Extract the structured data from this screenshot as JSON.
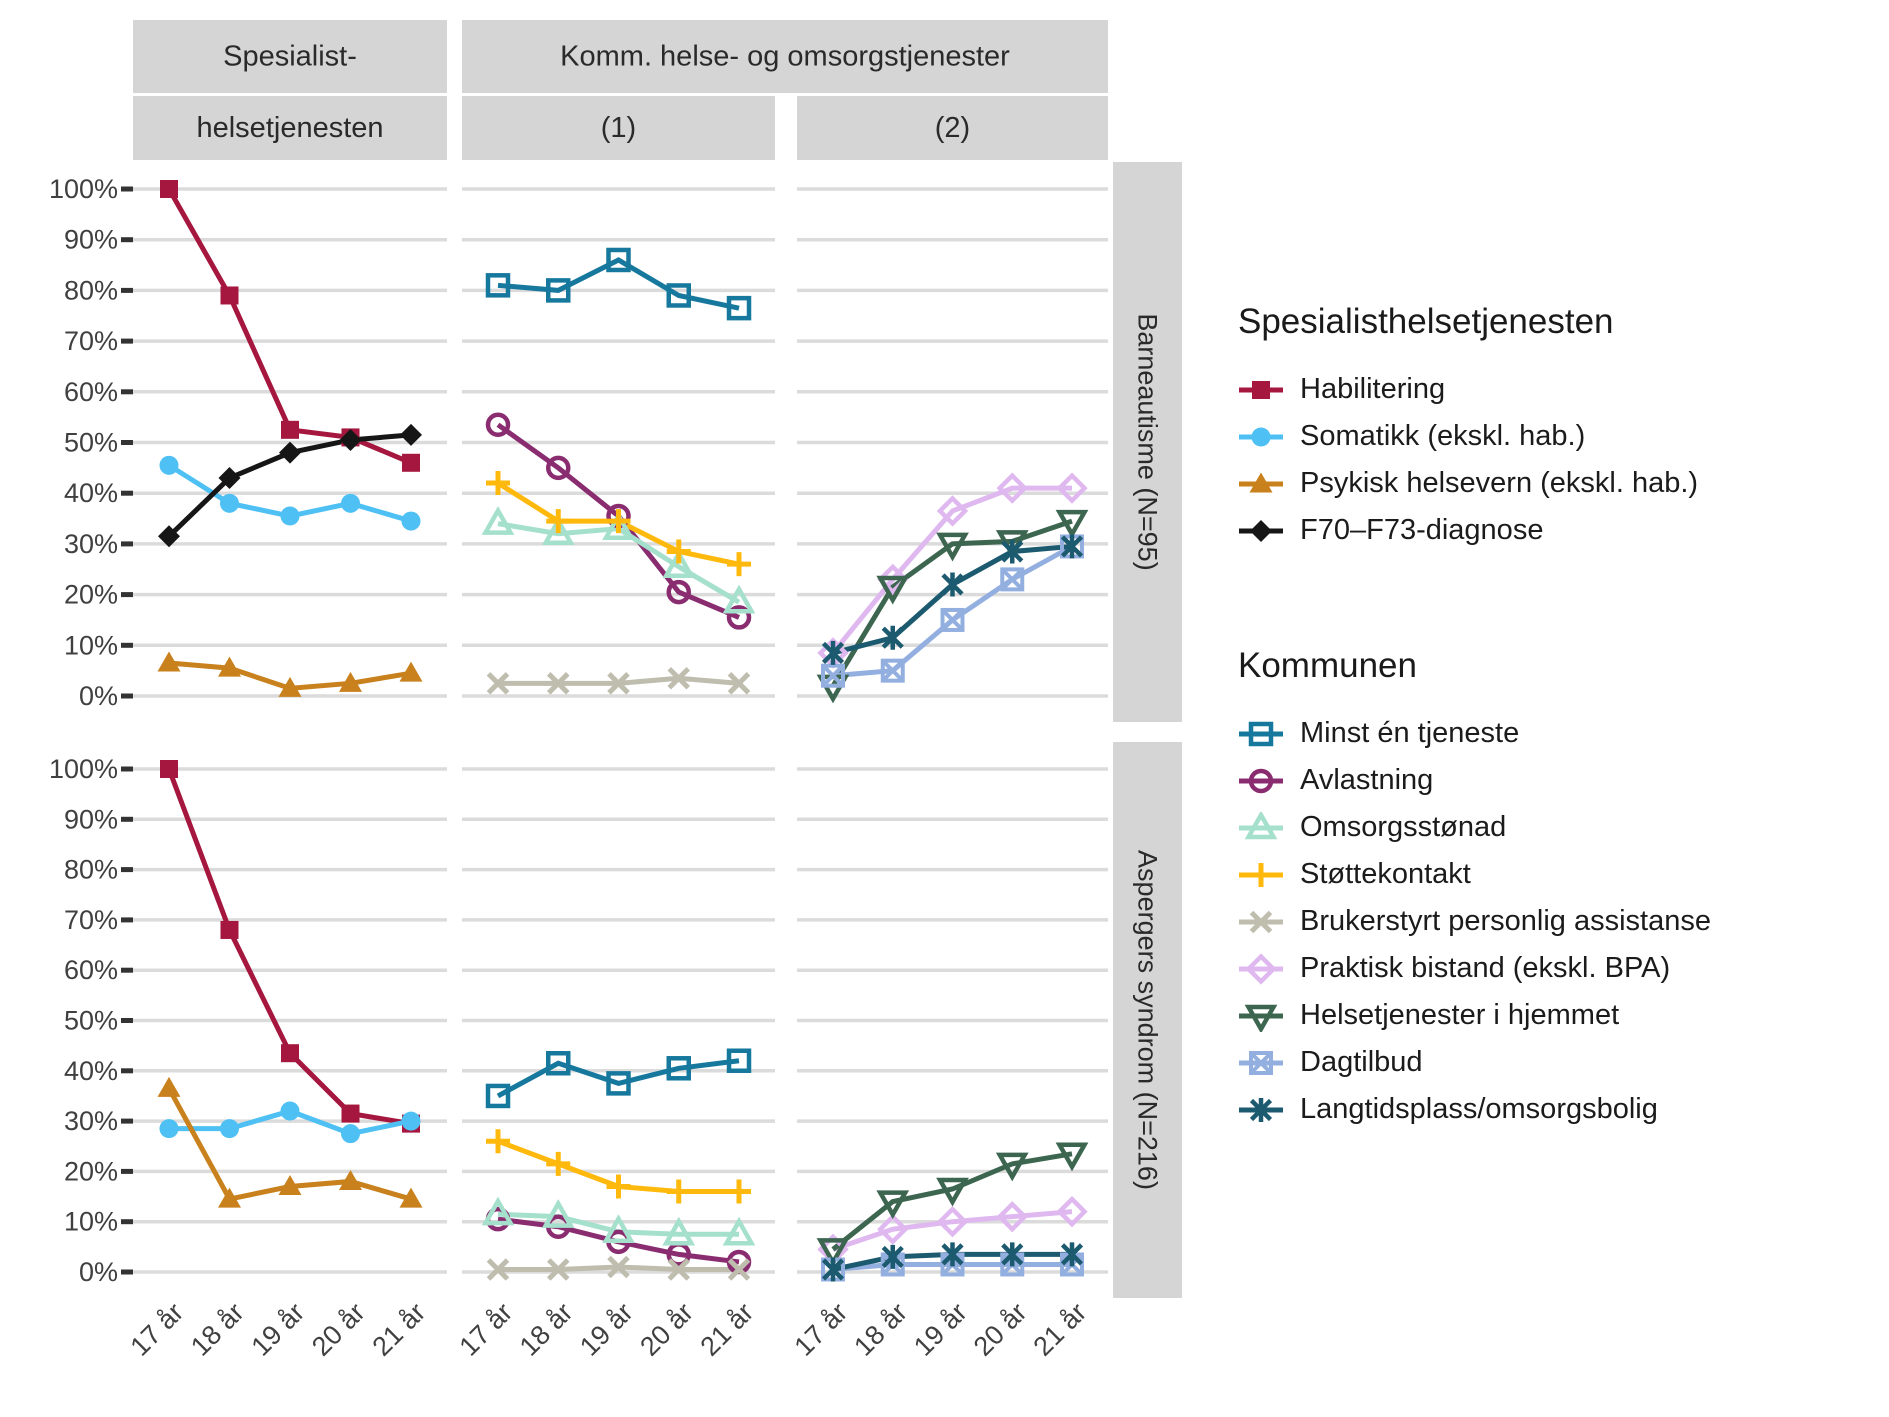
{
  "figure": {
    "facet_column_headers": {
      "spesialist_line1": "Spesialist-",
      "spesialist_line2": "helsetjenesten",
      "komm_group": "Komm. helse- og omsorgstjenester",
      "komm1": "(1)",
      "komm2": "(2)"
    },
    "facet_row_labels": {
      "barneautisme": "Barneautisme (N=95)",
      "aspergers": "Aspergers syndrom (N=216)"
    }
  },
  "axes": {
    "y_tick_labels": [
      "0%",
      "10%",
      "20%",
      "30%",
      "40%",
      "50%",
      "60%",
      "70%",
      "80%",
      "90%",
      "100%"
    ],
    "x_tick_labels": [
      "17 år",
      "18 år",
      "19 år",
      "20 år",
      "21 år"
    ]
  },
  "legend": {
    "groups": [
      {
        "title": "Spesialisthelsetjenesten",
        "series": [
          "habilitering",
          "somatikk",
          "psykisk",
          "f70"
        ]
      },
      {
        "title": "Kommunen",
        "series": [
          "minst",
          "avlastning",
          "omsorg",
          "stotte",
          "bpa",
          "praktisk",
          "hjemme",
          "dagtilbud",
          "langtid"
        ]
      }
    ]
  },
  "chart_data": {
    "type": "line",
    "x_categories": [
      "17 år",
      "18 år",
      "19 år",
      "20 år",
      "21 år"
    ],
    "ylim": [
      0,
      100
    ],
    "ytick_step": 10,
    "grid": true,
    "legend_position": "right",
    "facet_columns": [
      {
        "id": "spesialist",
        "label": "Spesialist- helsetjenesten"
      },
      {
        "id": "komm1",
        "label": "Komm. helse- og omsorgstjenester (1)"
      },
      {
        "id": "komm2",
        "label": "Komm. helse- og omsorgstjenester (2)"
      }
    ],
    "facet_rows": [
      {
        "id": "barneautisme",
        "label": "Barneautisme (N=95)"
      },
      {
        "id": "aspergers",
        "label": "Aspergers syndrom (N=216)"
      }
    ],
    "series": [
      {
        "id": "habilitering",
        "label": "Habilitering",
        "color": "#A5173E",
        "marker": "square",
        "facet_col": "spesialist",
        "values": {
          "barneautisme": [
            100,
            79,
            52.5,
            51,
            46
          ],
          "aspergers": [
            100,
            68,
            43.5,
            31.5,
            29.5
          ]
        }
      },
      {
        "id": "somatikk",
        "label": "Somatikk (ekskl. hab.)",
        "color": "#4EC0F4",
        "marker": "circle",
        "facet_col": "spesialist",
        "values": {
          "barneautisme": [
            45.5,
            38,
            35.5,
            38,
            34.5
          ],
          "aspergers": [
            28.5,
            28.5,
            32,
            27.5,
            30
          ]
        }
      },
      {
        "id": "psykisk",
        "label": "Psykisk helsevern (ekskl. hab.)",
        "color": "#C8811C",
        "marker": "triangle-up",
        "facet_col": "spesialist",
        "values": {
          "barneautisme": [
            6.5,
            5.5,
            1.5,
            2.5,
            4.5
          ],
          "aspergers": [
            36.5,
            14.5,
            17,
            18,
            14.5
          ]
        }
      },
      {
        "id": "f70",
        "label": "F70–F73-diagnose",
        "color": "#161616",
        "marker": "diamond",
        "facet_col": "spesialist",
        "values": {
          "barneautisme": [
            31.5,
            43,
            48,
            50.5,
            51.5
          ],
          "aspergers": null
        }
      },
      {
        "id": "minst",
        "label": "Minst én tjeneste",
        "color": "#17789E",
        "marker": "square-open",
        "facet_col": "komm1",
        "values": {
          "barneautisme": [
            81,
            80,
            86,
            79,
            76.5
          ],
          "aspergers": [
            35,
            41.5,
            37.5,
            40.5,
            42
          ]
        }
      },
      {
        "id": "avlastning",
        "label": "Avlastning",
        "color": "#8A2C70",
        "marker": "circle-open",
        "facet_col": "komm1",
        "values": {
          "barneautisme": [
            53.5,
            45,
            35.5,
            20.5,
            15.5
          ],
          "aspergers": [
            10.5,
            9,
            6,
            3.5,
            2
          ]
        }
      },
      {
        "id": "omsorg",
        "label": "Omsorgsstønad",
        "color": "#A4E0CC",
        "marker": "triangle-up-open",
        "facet_col": "komm1",
        "values": {
          "barneautisme": [
            34,
            32,
            33,
            25.5,
            18.5
          ],
          "aspergers": [
            11.5,
            11,
            8,
            7.5,
            7.5
          ]
        }
      },
      {
        "id": "stotte",
        "label": "Støttekontakt",
        "color": "#FFB90C",
        "marker": "plus",
        "facet_col": "komm1",
        "values": {
          "barneautisme": [
            42,
            34.5,
            34.5,
            28.5,
            26
          ],
          "aspergers": [
            26,
            21.5,
            17,
            16,
            16
          ]
        }
      },
      {
        "id": "bpa",
        "label": "Brukerstyrt personlig assistanse",
        "color": "#BFBEAE",
        "marker": "x",
        "facet_col": "komm1",
        "values": {
          "barneautisme": [
            2.5,
            2.5,
            2.5,
            3.5,
            2.5
          ],
          "aspergers": [
            0.5,
            0.5,
            1,
            0.5,
            0.5
          ]
        }
      },
      {
        "id": "praktisk",
        "label": "Praktisk bistand (ekskl. BPA)",
        "color": "#DFB8F0",
        "marker": "diamond-open",
        "facet_col": "komm2",
        "values": {
          "barneautisme": [
            8.5,
            23,
            36.5,
            41,
            41
          ],
          "aspergers": [
            4.5,
            8.5,
            10,
            11,
            12
          ]
        }
      },
      {
        "id": "hjemme",
        "label": "Helsetjenester i hjemmet",
        "color": "#3D6650",
        "marker": "triangle-down-open",
        "facet_col": "komm2",
        "values": {
          "barneautisme": [
            2,
            21.5,
            30,
            30.5,
            34.5
          ],
          "aspergers": [
            4.5,
            14,
            16.5,
            21.5,
            23.5
          ]
        }
      },
      {
        "id": "dagtilbud",
        "label": "Dagtilbud",
        "color": "#93AFE0",
        "marker": "square-x",
        "facet_col": "komm2",
        "values": {
          "barneautisme": [
            4,
            5,
            15,
            23,
            29.5
          ],
          "aspergers": [
            0.5,
            1.5,
            1.5,
            1.5,
            1.5
          ]
        }
      },
      {
        "id": "langtid",
        "label": "Langtidsplass/omsorgsbolig",
        "color": "#1C5A70",
        "marker": "asterisk",
        "facet_col": "komm2",
        "values": {
          "barneautisme": [
            8.5,
            11.5,
            22,
            28.5,
            29.5
          ],
          "aspergers": [
            0.5,
            3,
            3.5,
            3.5,
            3.5
          ]
        }
      }
    ]
  }
}
